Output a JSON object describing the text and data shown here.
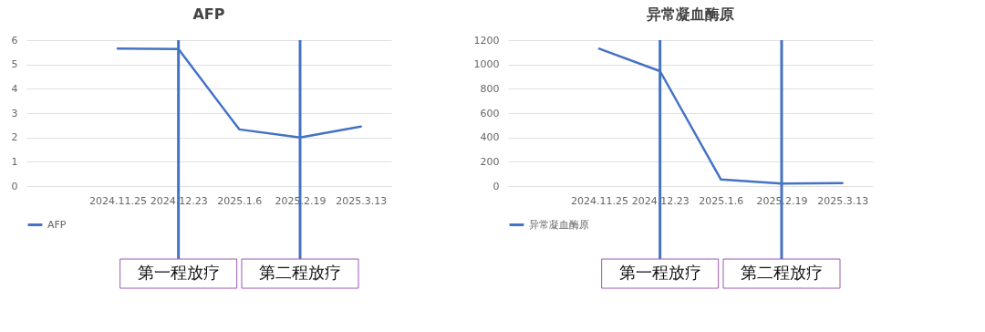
{
  "chart_data": [
    {
      "type": "line",
      "title": "AFP",
      "categories": [
        null,
        "2024.11.25",
        "2024.12.23",
        "2025.1.6",
        "2025.2.19",
        "2025.3.13"
      ],
      "series": [
        {
          "name": "AFP",
          "color": "#4472c4",
          "values": [
            null,
            5.65,
            5.63,
            2.33,
            2.0,
            2.45
          ]
        }
      ],
      "ylim": [
        0,
        6
      ],
      "yticks": [
        0,
        1,
        2,
        3,
        4,
        5,
        6
      ],
      "grid": "y",
      "legend": "bottom",
      "ref_lines": [
        {
          "axis": "x",
          "value": "2024.12.23",
          "label": "第一程放疗",
          "color": "#4472c4"
        },
        {
          "axis": "x",
          "value": "2025.2.19",
          "label": "第二程放疗",
          "color": "#4472c4"
        }
      ]
    },
    {
      "type": "line",
      "title": "异常凝血酶原",
      "categories": [
        null,
        "2024.11.25",
        "2024.12.23",
        "2025.1.6",
        "2025.2.19",
        "2025.3.13"
      ],
      "series": [
        {
          "name": "异常凝血酶原",
          "color": "#4472c4",
          "values": [
            null,
            1130,
            945,
            55,
            20,
            25
          ]
        }
      ],
      "ylim": [
        0,
        1200
      ],
      "yticks": [
        0,
        200,
        400,
        600,
        800,
        1000,
        1200
      ],
      "grid": "y",
      "legend": "bottom",
      "ref_lines": [
        {
          "axis": "x",
          "value": "2024.12.23",
          "label": "第一程放疗",
          "color": "#4472c4"
        },
        {
          "axis": "x",
          "value": "2025.2.19",
          "label": "第二程放疗",
          "color": "#4472c4"
        }
      ]
    }
  ]
}
